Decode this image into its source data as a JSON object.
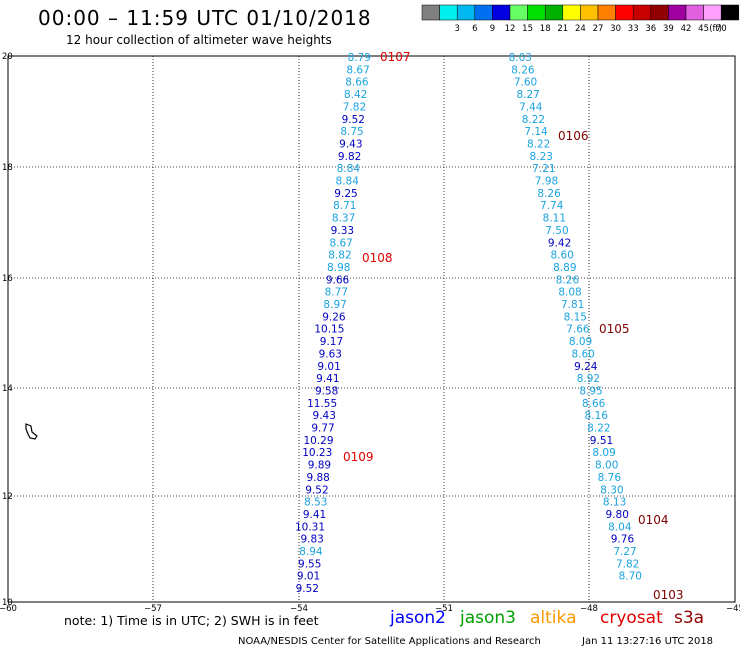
{
  "title": "00:00 – 11:59 UTC 01/10/2018",
  "subtitle": "12 hour collection of altimeter wave heights",
  "legend": {
    "unit": "(ft)",
    "items": [
      {
        "label": "",
        "color": "#808080"
      },
      {
        "label": "3",
        "color": "#00f0f0"
      },
      {
        "label": "6",
        "color": "#00b8f0"
      },
      {
        "label": "9",
        "color": "#0070f0"
      },
      {
        "label": "12",
        "color": "#0000e0"
      },
      {
        "label": "15",
        "color": "#66ff66"
      },
      {
        "label": "18",
        "color": "#00e000"
      },
      {
        "label": "21",
        "color": "#00b000"
      },
      {
        "label": "24",
        "color": "#ffff00"
      },
      {
        "label": "27",
        "color": "#ffc000"
      },
      {
        "label": "30",
        "color": "#ff8000"
      },
      {
        "label": "33",
        "color": "#ff0000"
      },
      {
        "label": "36",
        "color": "#c80000"
      },
      {
        "label": "39",
        "color": "#900000"
      },
      {
        "label": "42",
        "color": "#a000a0"
      },
      {
        "label": "45",
        "color": "#e060e0"
      },
      {
        "label": "70",
        "color": "#ffa0ff"
      },
      {
        "label": "",
        "color": "#000000"
      }
    ]
  },
  "axes": {
    "lon_ticks": [
      "−60",
      "−57",
      "−54",
      "−51",
      "−48",
      "−45"
    ],
    "lat_ticks": [
      "20",
      "18",
      "16",
      "14",
      "12",
      "10"
    ]
  },
  "colors": {
    "light": "#1aa3e0",
    "dark": "#0000c0",
    "time_red": "#e00000",
    "time_dark": "#800000"
  },
  "tracks": [
    {
      "name": "track-west",
      "values": [
        "8.79",
        "8.67",
        "8.66",
        "8.42",
        "7.82",
        "9.52",
        "8.75",
        "9.43",
        "9.82",
        "8.84",
        "8.84",
        "9.25",
        "8.71",
        "8.37",
        "9.33",
        "8.67",
        "8.82",
        "8.98",
        "9.66",
        "8.77",
        "8.97",
        "9.26",
        "10.15",
        "9.17",
        "9.63",
        "9.01",
        "9.41",
        "9.58",
        "11.55",
        "9.43",
        "9.77",
        "10.29",
        "10.23",
        "9.89",
        "9.88",
        "9.52",
        "8.53",
        "9.41",
        "10.31",
        "9.83",
        "8.94",
        "9.55",
        "9.01",
        "9.52"
      ],
      "dark": [
        false,
        false,
        false,
        false,
        false,
        true,
        false,
        true,
        true,
        false,
        false,
        true,
        false,
        false,
        true,
        false,
        false,
        false,
        true,
        false,
        false,
        true,
        true,
        true,
        true,
        true,
        true,
        true,
        true,
        true,
        true,
        true,
        true,
        true,
        true,
        true,
        false,
        true,
        true,
        true,
        false,
        true,
        true,
        true
      ]
    },
    {
      "name": "track-east",
      "values": [
        "8.03",
        "8.26",
        "7.60",
        "8.27",
        "7.44",
        "8.22",
        "7.14",
        "8.22",
        "8.23",
        "7.21",
        "7.98",
        "8.26",
        "7.74",
        "8.11",
        "7.50",
        "9.42",
        "8.60",
        "8.89",
        "8.26",
        "8.08",
        "7.81",
        "8.15",
        "7.66",
        "8.09",
        "8.60",
        "9.24",
        "8.92",
        "8.95",
        "8.66",
        "8.16",
        "8.22",
        "9.51",
        "8.09",
        "8.00",
        "8.76",
        "8.30",
        "8.13",
        "9.80",
        "8.04",
        "9.76",
        "7.27",
        "7.82",
        "8.70"
      ],
      "dark": [
        false,
        false,
        false,
        false,
        false,
        false,
        false,
        false,
        false,
        false,
        false,
        false,
        false,
        false,
        false,
        true,
        false,
        false,
        false,
        false,
        false,
        false,
        false,
        false,
        false,
        true,
        false,
        false,
        false,
        false,
        false,
        true,
        false,
        false,
        false,
        false,
        false,
        true,
        false,
        true,
        false,
        false,
        false
      ]
    }
  ],
  "time_labels": [
    {
      "text": "0107",
      "color": "#e00000"
    },
    {
      "text": "0108",
      "color": "#e00000"
    },
    {
      "text": "0109",
      "color": "#e00000"
    },
    {
      "text": "0106",
      "color": "#800000"
    },
    {
      "text": "0105",
      "color": "#800000"
    },
    {
      "text": "0104",
      "color": "#800000"
    },
    {
      "text": "0103",
      "color": "#800000"
    }
  ],
  "note": "note:  1) Time is in UTC;  2) SWH is in feet",
  "satellites": [
    {
      "name": "jason2",
      "color": "#0000ff"
    },
    {
      "name": "jason3",
      "color": "#00a000"
    },
    {
      "name": "altika",
      "color": "#ff9900"
    },
    {
      "name": "cryosat",
      "color": "#e00000"
    },
    {
      "name": "s3a",
      "color": "#900000"
    }
  ],
  "credit": "NOAA/NESDIS Center for Satellite Applications and Research",
  "timestamp": "Jan 11 13:27:16 UTC 2018"
}
